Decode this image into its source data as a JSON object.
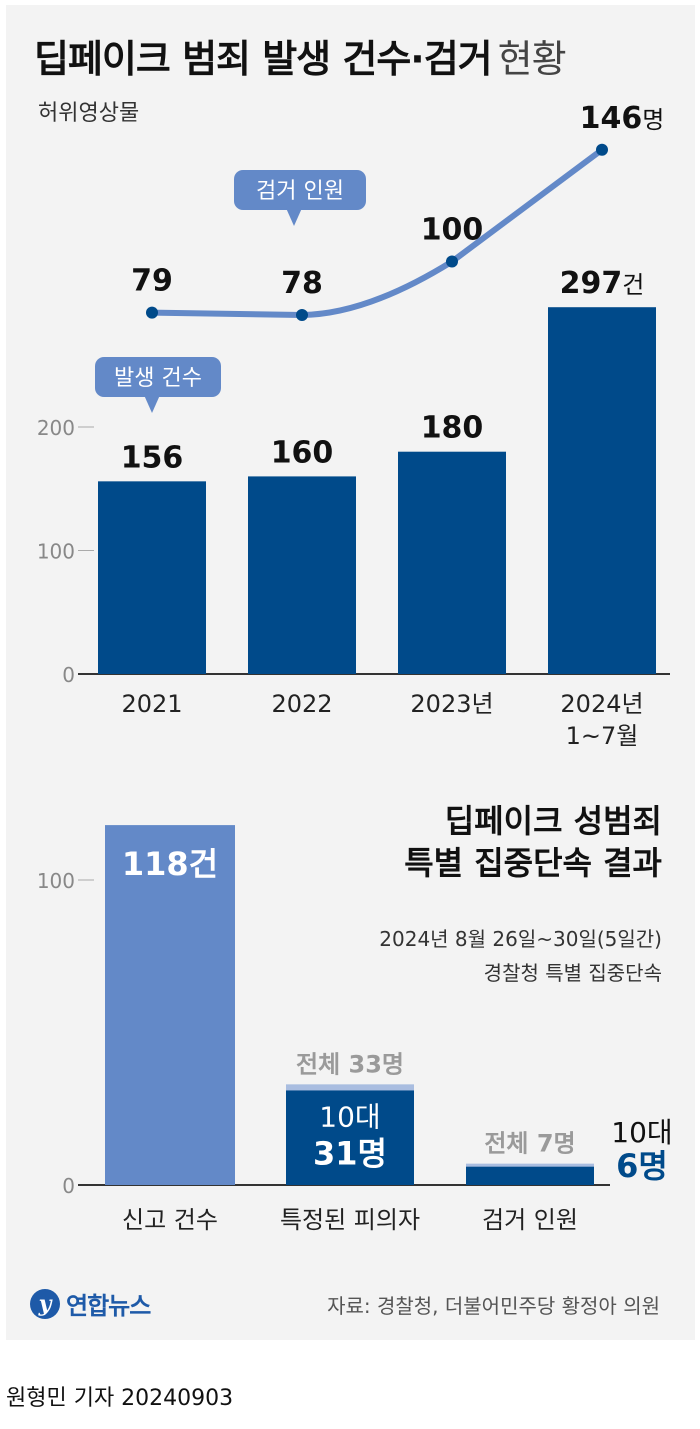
{
  "title": "딥페이크 범죄 발생 건수·검거",
  "title_suffix": "현황",
  "subtitle": "허위영상물",
  "colors": {
    "dark_bar": "#004a8a",
    "light_bar": "#6389c8",
    "line": "#6389c8",
    "pale_bar": "#a9bde0",
    "axis": "#888888"
  },
  "chart_data": [
    {
      "type": "bar+line",
      "categories": [
        "2021",
        "2022",
        "2023년",
        "2024년\n1~7월"
      ],
      "ylim": [
        0,
        300
      ],
      "yticks": [
        0,
        100,
        200
      ],
      "series": [
        {
          "name": "발생 건수",
          "type": "bar",
          "values": [
            156,
            160,
            180,
            297
          ],
          "labels": [
            "156",
            "160",
            "180",
            "297건"
          ]
        },
        {
          "name": "검거 인원",
          "type": "line",
          "values": [
            79,
            78,
            100,
            146
          ],
          "labels": [
            "79",
            "78",
            "100",
            "146명"
          ]
        }
      ]
    },
    {
      "type": "bar",
      "title": "딥페이크 성범죄\n특별 집중단속 결과",
      "categories": [
        "신고 건수",
        "특정된 피의자",
        "검거 인원"
      ],
      "ylim": [
        0,
        120
      ],
      "yticks": [
        0,
        100
      ],
      "series": [
        {
          "name": "전체",
          "values": [
            118,
            33,
            7
          ],
          "labels": [
            "118건",
            "전체 33명",
            "전체 7명"
          ]
        },
        {
          "name": "10대",
          "values": [
            null,
            31,
            6
          ],
          "labels": [
            "",
            "10대\n31명",
            "10대\n6명"
          ]
        }
      ]
    }
  ],
  "side": {
    "title_line1": "딥페이크 성범죄",
    "title_line2": "특별 집중단속 결과",
    "sub_line1": "2024년 8월 26일~30일(5일간)",
    "sub_line2": "경찰청 특별 집중단속"
  },
  "logo_text": "연합뉴스",
  "source": "자료: 경찰청, 더불어민주당 황정아 의원",
  "byline": "원형민 기자  20240903"
}
